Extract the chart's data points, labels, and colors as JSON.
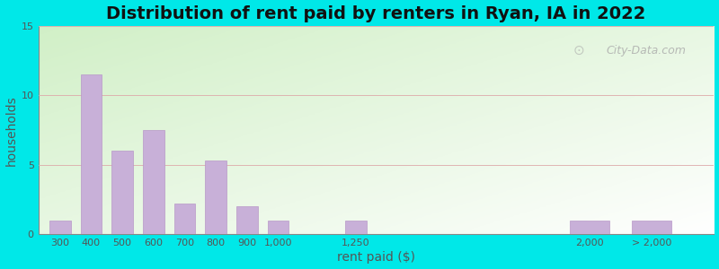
{
  "title": "Distribution of rent paid by renters in Ryan, IA in 2022",
  "xlabel": "rent paid ($)",
  "ylabel": "households",
  "bar_color": "#c8b0d8",
  "bar_edgecolor": "#b898c8",
  "background_outer": "#00e8e8",
  "ylim": [
    0,
    15
  ],
  "yticks": [
    0,
    5,
    10,
    15
  ],
  "x_positions": [
    300,
    400,
    500,
    600,
    700,
    800,
    900,
    1000,
    1250,
    2000,
    2200
  ],
  "bar_widths": [
    80,
    80,
    80,
    80,
    80,
    80,
    80,
    80,
    80,
    150,
    150
  ],
  "x_tick_positions": [
    300,
    400,
    500,
    600,
    700,
    800,
    900,
    1000,
    1250,
    2000,
    2200
  ],
  "x_tick_labels": [
    "300",
    "400",
    "500",
    "600",
    "700",
    "800",
    "900",
    "1,000",
    "1,250",
    "2,000",
    "> 2,000"
  ],
  "values": [
    1,
    11.5,
    6,
    7.5,
    2.2,
    5.3,
    2,
    1,
    1,
    1,
    1
  ],
  "title_fontsize": 14,
  "axis_label_fontsize": 10,
  "tick_fontsize": 8,
  "watermark_text": "City-Data.com",
  "xlim": [
    230,
    2400
  ]
}
